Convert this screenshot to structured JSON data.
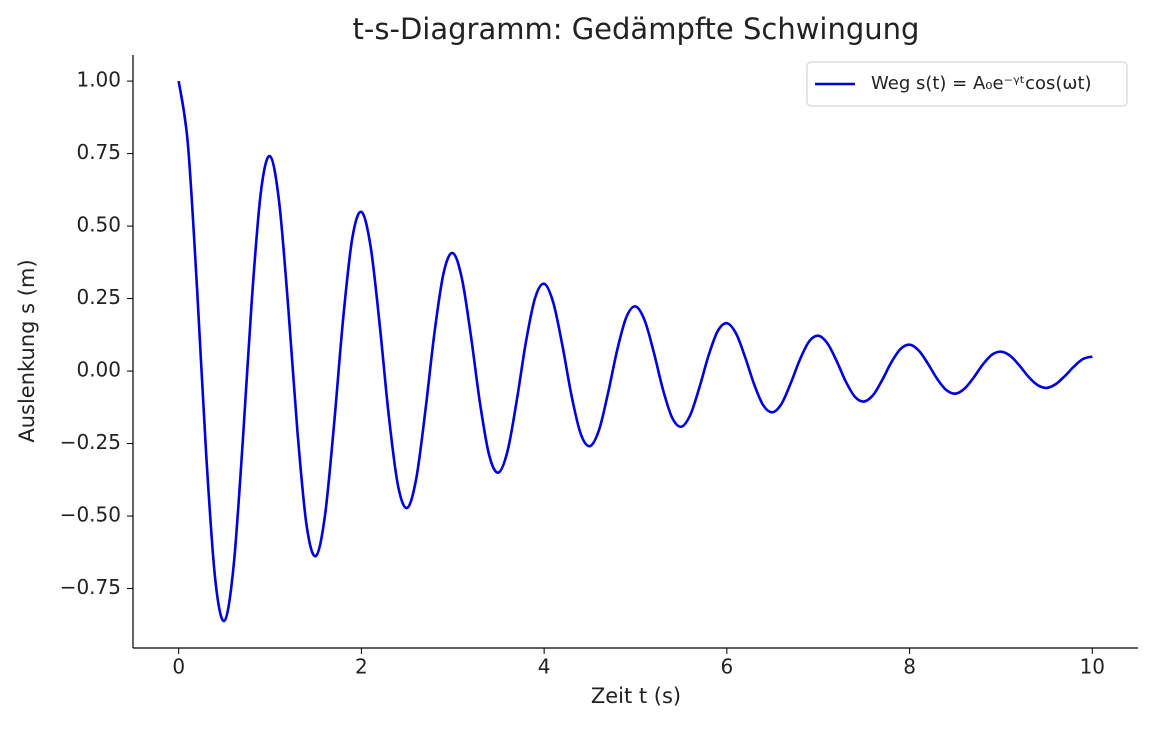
{
  "chart_data": {
    "type": "line",
    "title": "t-s-Diagramm: Gedämpfte Schwingung",
    "xlabel": "Zeit t (s)",
    "ylabel": "Auslenkung s (m)",
    "xlim": [
      -0.5,
      10.5
    ],
    "ylim": [
      -0.955,
      1.09
    ],
    "xticks": [
      0,
      2,
      4,
      6,
      8,
      10
    ],
    "yticks": [
      {
        "value": -0.75,
        "label": "−0.75"
      },
      {
        "value": -0.5,
        "label": "−0.50"
      },
      {
        "value": -0.25,
        "label": "−0.25"
      },
      {
        "value": 0,
        "label": "0.00"
      },
      {
        "value": 0.25,
        "label": "0.25"
      },
      {
        "value": 0.5,
        "label": "0.50"
      },
      {
        "value": 0.75,
        "label": "0.75"
      },
      {
        "value": 1,
        "label": "1.00"
      }
    ],
    "legend": "upper right",
    "x": [
      0,
      0.1,
      0.2,
      0.3,
      0.4,
      0.5,
      0.6,
      0.7,
      0.8,
      0.9,
      1,
      1.1,
      1.2,
      1.3,
      1.4,
      1.5,
      1.6,
      1.7,
      1.8,
      1.9,
      2,
      2.1,
      2.2,
      2.3,
      2.4,
      2.5,
      2.6,
      2.7,
      2.8,
      2.9,
      3,
      3.1,
      3.2,
      3.3,
      3.4,
      3.5,
      3.6,
      3.7,
      3.8,
      3.9,
      4,
      4.1,
      4.2,
      4.3,
      4.4,
      4.5,
      4.6,
      4.7,
      4.8,
      4.9,
      5,
      5.1,
      5.2,
      5.3,
      5.4,
      5.5,
      5.6,
      5.7,
      5.8,
      5.9,
      6,
      6.1,
      6.2,
      6.3,
      6.4,
      6.5,
      6.6,
      6.7,
      6.8,
      6.9,
      7,
      7.1,
      7.2,
      7.3,
      7.4,
      7.5,
      7.6,
      7.7,
      7.8,
      7.9,
      8,
      8.1,
      8.2,
      8.3,
      8.4,
      8.5,
      8.6,
      8.7,
      8.8,
      8.9,
      9,
      9.1,
      9.2,
      9.3,
      9.4,
      9.5,
      9.6,
      9.7,
      9.8,
      9.9,
      10
    ],
    "series": [
      {
        "name": "Weg s(t) = A₀e⁻ᵞᵗcos(ωt)",
        "color": "#0000dd",
        "values": [
          1,
          0.785,
          0.291,
          -0.282,
          -0.718,
          -0.861,
          -0.676,
          -0.25,
          0.243,
          0.618,
          0.741,
          0.582,
          0.216,
          -0.209,
          -0.532,
          -0.638,
          -0.501,
          -0.186,
          0.18,
          0.458,
          0.549,
          0.431,
          0.16,
          -0.155,
          -0.394,
          -0.472,
          -0.371,
          -0.137,
          0.133,
          0.339,
          0.407,
          0.319,
          0.118,
          -0.115,
          -0.292,
          -0.35,
          -0.275,
          -0.102,
          0.099,
          0.251,
          0.301,
          0.236,
          0.088,
          -0.085,
          -0.216,
          -0.259,
          -0.204,
          -0.075,
          0.073,
          0.186,
          0.223,
          0.175,
          0.065,
          -0.063,
          -0.16,
          -0.192,
          -0.151,
          -0.056,
          0.054,
          0.138,
          0.165,
          0.13,
          0.048,
          -0.047,
          -0.119,
          -0.142,
          -0.112,
          -0.041,
          0.04,
          0.102,
          0.122,
          0.096,
          0.036,
          -0.035,
          -0.088,
          -0.105,
          -0.083,
          -0.031,
          0.03,
          0.076,
          0.091,
          0.071,
          0.026,
          -0.026,
          -0.065,
          -0.078,
          -0.061,
          -0.023,
          0.022,
          0.056,
          0.067,
          0.053,
          0.02,
          -0.019,
          -0.048,
          -0.058,
          -0.045,
          -0.017,
          0.016,
          0.042,
          0.05
        ]
      }
    ]
  }
}
